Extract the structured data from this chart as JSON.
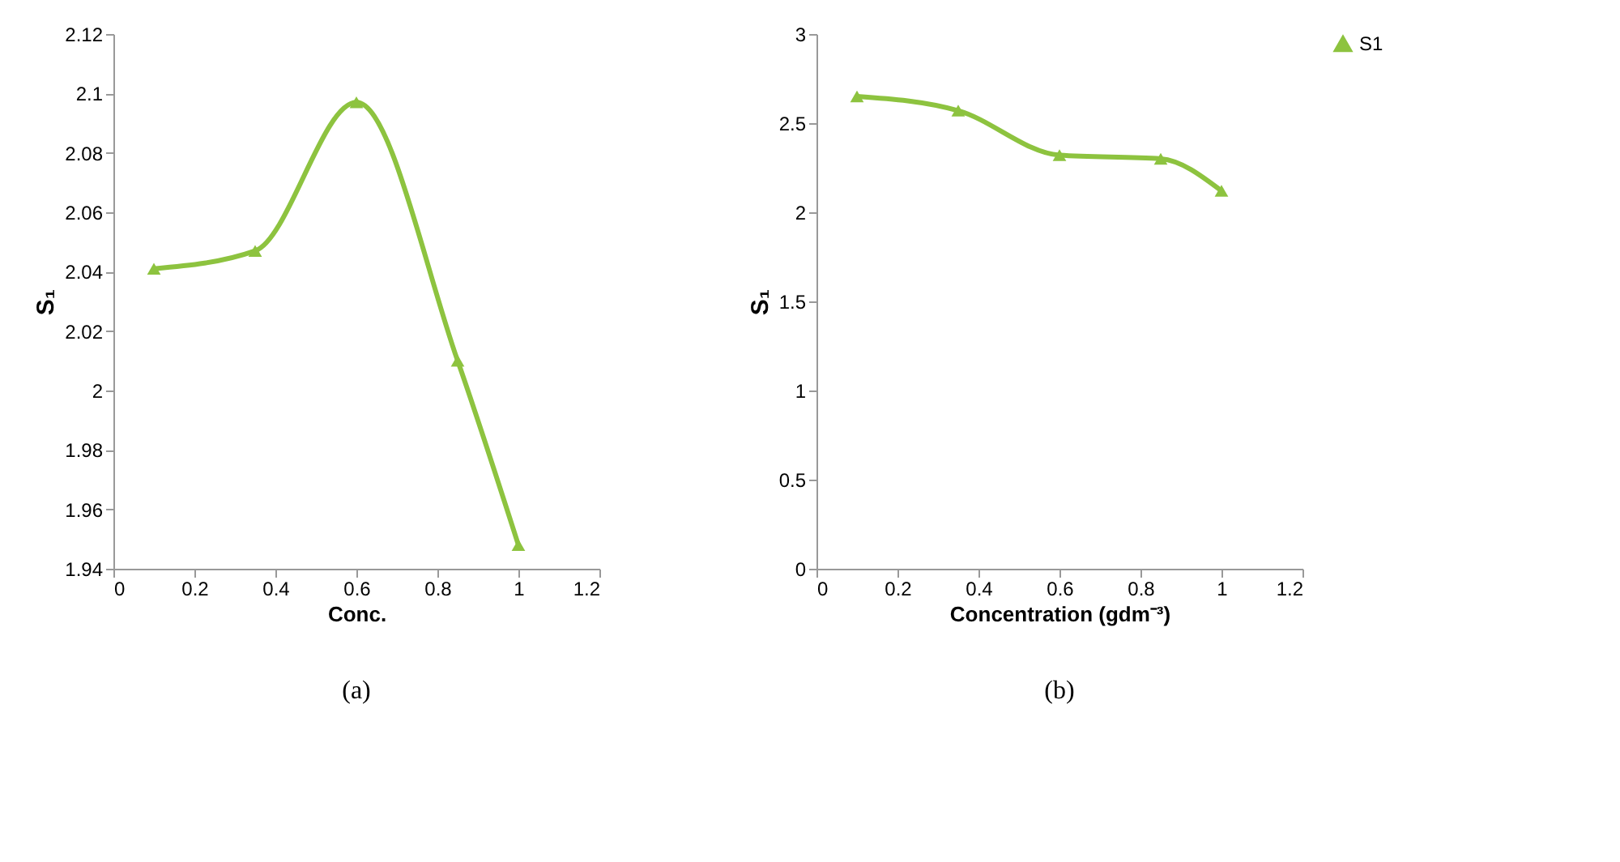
{
  "chart_data": [
    {
      "type": "line",
      "x": [
        0.1,
        0.35,
        0.6,
        0.85,
        1
      ],
      "xlabel": "Conc.",
      "ylabel": "S₁",
      "xlim": [
        0,
        1.2
      ],
      "xticks": [
        0,
        0.2,
        0.4,
        0.6,
        0.8,
        1,
        1.2
      ],
      "ylim": [
        1.94,
        2.12
      ],
      "yticks": [
        1.94,
        1.96,
        1.98,
        2,
        2.02,
        2.04,
        2.06,
        2.08,
        2.1,
        2.12
      ],
      "marker": "triangle",
      "line_style": "solid",
      "legend": false,
      "annotations": [
        "(a)"
      ],
      "series": [
        {
          "color": "#8dc33f",
          "values": [
            2.041,
            2.047,
            2.097,
            2.01,
            1.948
          ]
        }
      ]
    },
    {
      "type": "line",
      "x": [
        0.1,
        0.35,
        0.6,
        0.85,
        1
      ],
      "xlabel": "Concentration (gdm⁻³)",
      "ylabel": "S₁",
      "xlim": [
        0,
        1.2
      ],
      "xticks": [
        0,
        0.2,
        0.4,
        0.6,
        0.8,
        1,
        1.2
      ],
      "ylim": [
        0,
        3
      ],
      "yticks": [
        0,
        0.5,
        1,
        1.5,
        2,
        2.5,
        3
      ],
      "marker": "triangle",
      "line_style": "solid",
      "legend": "right",
      "annotations": [
        "(b)"
      ],
      "series": [
        {
          "name": "S1",
          "color": "#8dc33f",
          "values": [
            2.65,
            2.57,
            2.32,
            2.3,
            2.12
          ]
        }
      ]
    }
  ]
}
